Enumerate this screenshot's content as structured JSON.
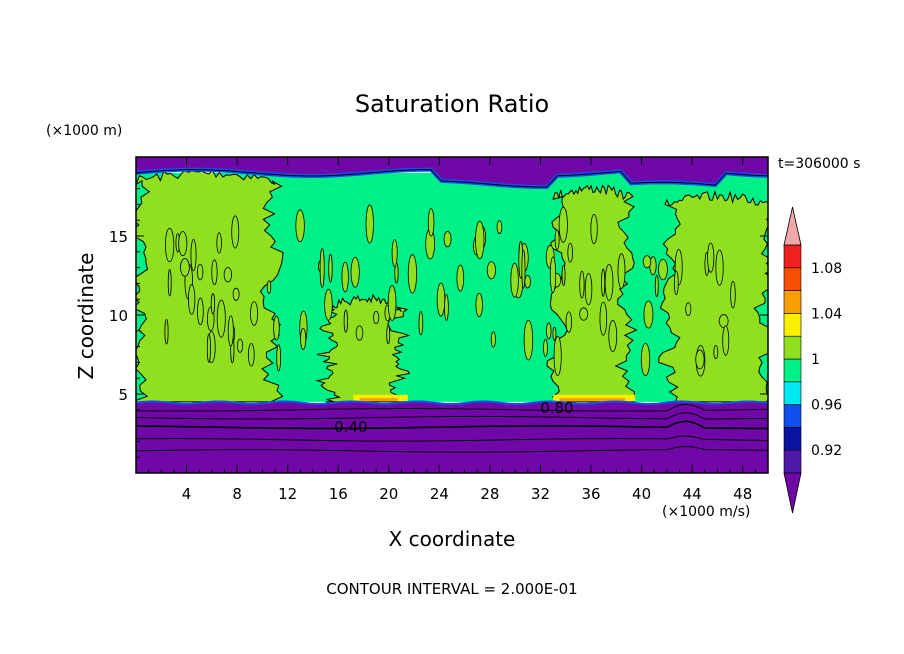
{
  "chart_data": {
    "type": "heatmap",
    "title": "Saturation Ratio",
    "xlabel": "X coordinate",
    "ylabel": "Z coordinate",
    "x_unit": "(×1000 m/s)",
    "y_unit": "(×1000 m)",
    "time_label": "t=306000 s",
    "footer": "CONTOUR INTERVAL = 2.000E-01",
    "xlim": [
      0,
      50
    ],
    "ylim": [
      0,
      20
    ],
    "x_ticks": [
      4,
      8,
      12,
      16,
      20,
      24,
      28,
      32,
      36,
      40,
      44,
      48
    ],
    "y_ticks": [
      5,
      10,
      15
    ],
    "contour_labels": [
      {
        "text": "0.40",
        "x": 17,
        "y": 2.9
      },
      {
        "text": "0.80",
        "x": 33.3,
        "y": 4.1
      }
    ],
    "colorbar": {
      "tick_labels": [
        "0.92",
        "0.96",
        "1",
        "1.04",
        "1.08"
      ],
      "tick_values": [
        0.92,
        0.96,
        1.0,
        1.04,
        1.08
      ],
      "bounds": [
        0.9,
        1.1
      ],
      "levels": [
        {
          "from": 0.9,
          "to": 0.92,
          "color": "#5018a8"
        },
        {
          "from": 0.92,
          "to": 0.94,
          "color": "#0a14a0"
        },
        {
          "from": 0.94,
          "to": 0.96,
          "color": "#1050f0"
        },
        {
          "from": 0.96,
          "to": 0.98,
          "color": "#00e8f0"
        },
        {
          "from": 0.98,
          "to": 1.0,
          "color": "#00f088"
        },
        {
          "from": 1.0,
          "to": 1.02,
          "color": "#90e020"
        },
        {
          "from": 1.02,
          "to": 1.04,
          "color": "#f8f000"
        },
        {
          "from": 1.04,
          "to": 1.06,
          "color": "#f8a000"
        },
        {
          "from": 1.06,
          "to": 1.08,
          "color": "#f85000"
        },
        {
          "from": 1.08,
          "to": 1.1,
          "color": "#f02020"
        }
      ],
      "under_color": "#7008a8",
      "over_color": "#f0a8a8"
    },
    "regions": [
      {
        "name": "lower-dry-layer",
        "value": 0.4,
        "x": [
          0,
          50
        ],
        "z": [
          0,
          4.5
        ]
      },
      {
        "name": "mid-moist-layer",
        "value": 0.99,
        "x": [
          0,
          50
        ],
        "z": [
          4.5,
          19
        ]
      },
      {
        "name": "saturated-cell-1",
        "value": 1.01,
        "x": [
          0,
          11
        ],
        "z": [
          4.5,
          18.5
        ]
      },
      {
        "name": "saturated-cell-2",
        "value": 1.01,
        "x": [
          15,
          21
        ],
        "z": [
          4.5,
          10.5
        ]
      },
      {
        "name": "saturated-cell-3",
        "value": 1.01,
        "x": [
          33,
          39
        ],
        "z": [
          4.5,
          17.5
        ]
      },
      {
        "name": "saturated-cell-4",
        "value": 1.01,
        "x": [
          42,
          50
        ],
        "z": [
          4.5,
          17
        ]
      },
      {
        "name": "upper-dry-layer",
        "value": 0.6,
        "x": [
          0,
          50
        ],
        "z": [
          19,
          20
        ]
      }
    ]
  }
}
